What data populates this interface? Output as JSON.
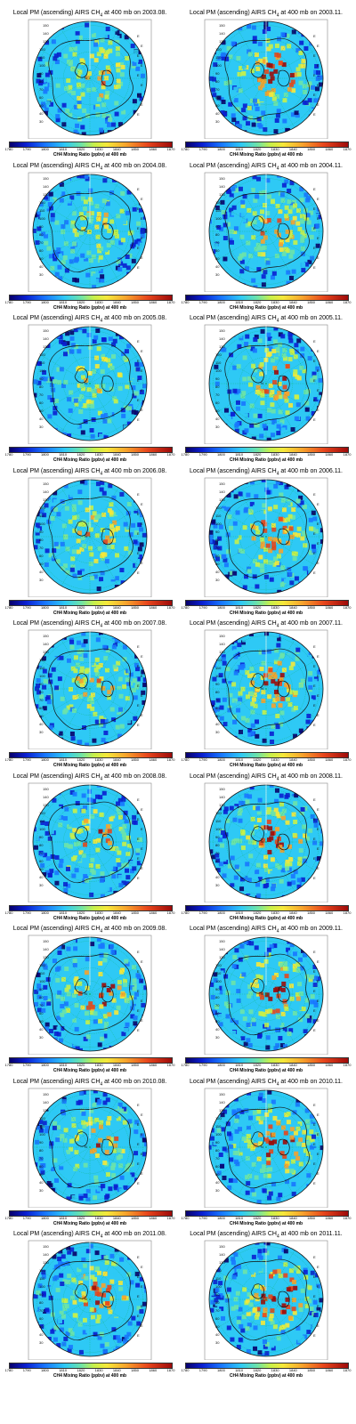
{
  "title_template": {
    "prefix": "Local PM (ascending) AIRS CH",
    "subscript": "4",
    "suffix": " at 400 mb on "
  },
  "colorbar": {
    "label": "CH4 Mixing Ratio (ppbv) at 400 mb",
    "ticks": [
      "1780",
      "1790",
      "1800",
      "1810",
      "1820",
      "1830",
      "1840",
      "1850",
      "1860",
      "1870"
    ],
    "range": [
      1780,
      1870
    ],
    "colors": [
      "#08006b",
      "#0a1fd1",
      "#1877ff",
      "#2ec9f5",
      "#6de3a8",
      "#c7f04a",
      "#f6e83a",
      "#f7a22c",
      "#e8461c",
      "#9e0a0a"
    ]
  },
  "map_labels": {
    "latitudes": [
      "150",
      "140",
      "130",
      "120",
      "110",
      "100",
      "90",
      "80",
      "70",
      "60",
      "50",
      "40",
      "30"
    ],
    "east_marks": [
      "E",
      "E",
      "E",
      "E",
      "E",
      "E",
      "E",
      "E",
      "E"
    ],
    "north_marks": [
      "N"
    ]
  },
  "panels": [
    {
      "date": "2003.08.",
      "intensity": 0.35
    },
    {
      "date": "2003.11.",
      "intensity": 0.7
    },
    {
      "date": "2004.08.",
      "intensity": 0.3
    },
    {
      "date": "2004.11.",
      "intensity": 0.45
    },
    {
      "date": "2005.08.",
      "intensity": 0.25
    },
    {
      "date": "2005.11.",
      "intensity": 0.55
    },
    {
      "date": "2006.08.",
      "intensity": 0.35
    },
    {
      "date": "2006.11.",
      "intensity": 0.55
    },
    {
      "date": "2007.08.",
      "intensity": 0.35
    },
    {
      "date": "2007.11.",
      "intensity": 0.6
    },
    {
      "date": "2008.08.",
      "intensity": 0.45
    },
    {
      "date": "2008.11.",
      "intensity": 0.7
    },
    {
      "date": "2009.08.",
      "intensity": 0.75
    },
    {
      "date": "2009.11.",
      "intensity": 0.7
    },
    {
      "date": "2010.08.",
      "intensity": 0.5
    },
    {
      "date": "2010.11.",
      "intensity": 0.7
    },
    {
      "date": "2011.08.",
      "intensity": 0.55
    },
    {
      "date": "2011.11.",
      "intensity": 0.85
    }
  ]
}
